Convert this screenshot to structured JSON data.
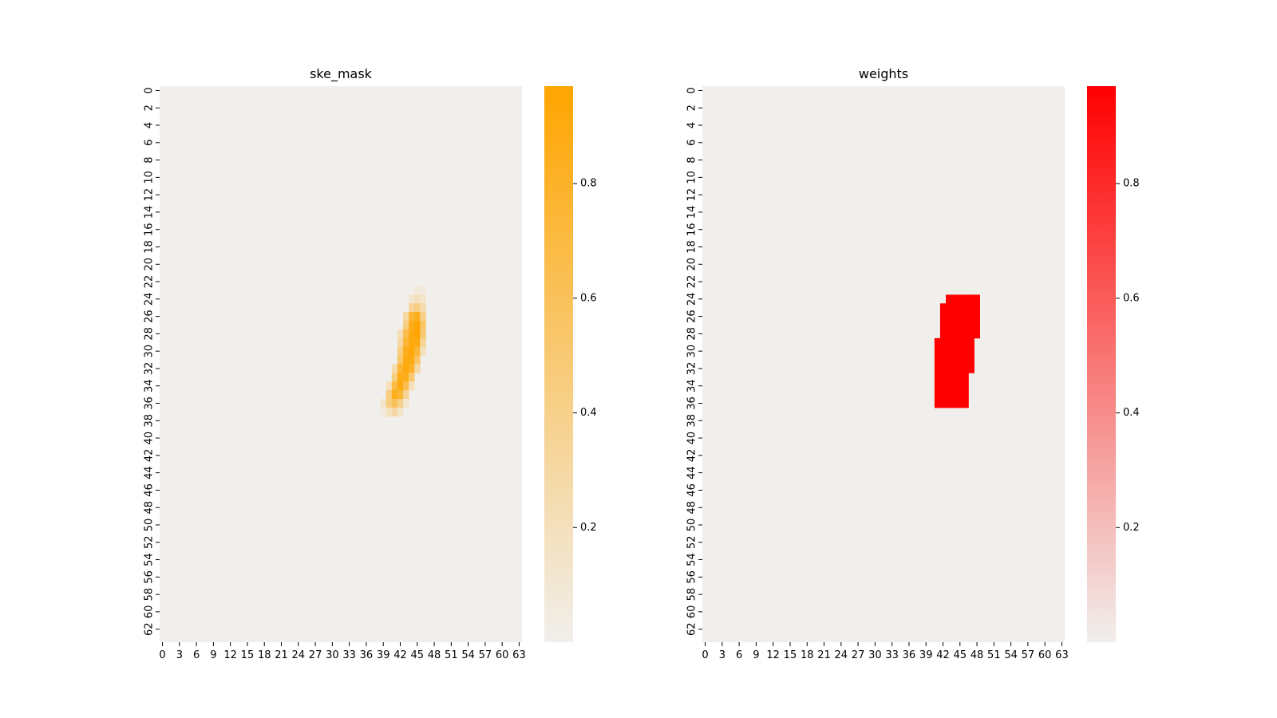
{
  "chart_data": [
    {
      "type": "heatmap",
      "title": "ske_mask",
      "xlabel": "",
      "ylabel": "",
      "grid": false,
      "rows": 64,
      "cols": 64,
      "x_ticks": [
        0,
        3,
        6,
        9,
        12,
        15,
        18,
        21,
        24,
        27,
        30,
        33,
        36,
        39,
        42,
        45,
        48,
        51,
        54,
        57,
        60,
        63
      ],
      "y_ticks": [
        0,
        2,
        4,
        6,
        8,
        10,
        12,
        14,
        16,
        18,
        20,
        22,
        24,
        26,
        28,
        30,
        32,
        34,
        36,
        38,
        40,
        42,
        44,
        46,
        48,
        50,
        52,
        54,
        56,
        58,
        60,
        62
      ],
      "colormap": {
        "low": "#f1efec",
        "high": "#ffa500",
        "range": [
          0,
          0.97
        ]
      },
      "colorbar_ticks": [
        0.2,
        0.4,
        0.6,
        0.8
      ],
      "cells": [
        {
          "r": 23,
          "c": 45,
          "v": 0.08
        },
        {
          "r": 23,
          "c": 46,
          "v": 0.06
        },
        {
          "r": 24,
          "c": 44,
          "v": 0.12
        },
        {
          "r": 24,
          "c": 45,
          "v": 0.2
        },
        {
          "r": 24,
          "c": 46,
          "v": 0.14
        },
        {
          "r": 25,
          "c": 44,
          "v": 0.35
        },
        {
          "r": 25,
          "c": 45,
          "v": 0.45
        },
        {
          "r": 25,
          "c": 46,
          "v": 0.25
        },
        {
          "r": 26,
          "c": 43,
          "v": 0.3
        },
        {
          "r": 26,
          "c": 44,
          "v": 0.75
        },
        {
          "r": 26,
          "c": 45,
          "v": 0.85
        },
        {
          "r": 26,
          "c": 46,
          "v": 0.4
        },
        {
          "r": 27,
          "c": 43,
          "v": 0.45
        },
        {
          "r": 27,
          "c": 44,
          "v": 0.85
        },
        {
          "r": 27,
          "c": 45,
          "v": 0.95
        },
        {
          "r": 27,
          "c": 46,
          "v": 0.55
        },
        {
          "r": 28,
          "c": 42,
          "v": 0.2
        },
        {
          "r": 28,
          "c": 43,
          "v": 0.65
        },
        {
          "r": 28,
          "c": 44,
          "v": 0.9
        },
        {
          "r": 28,
          "c": 45,
          "v": 0.97
        },
        {
          "r": 28,
          "c": 46,
          "v": 0.5
        },
        {
          "r": 29,
          "c": 42,
          "v": 0.3
        },
        {
          "r": 29,
          "c": 43,
          "v": 0.75
        },
        {
          "r": 29,
          "c": 44,
          "v": 0.92
        },
        {
          "r": 29,
          "c": 45,
          "v": 0.9
        },
        {
          "r": 29,
          "c": 46,
          "v": 0.35
        },
        {
          "r": 30,
          "c": 42,
          "v": 0.45
        },
        {
          "r": 30,
          "c": 43,
          "v": 0.85
        },
        {
          "r": 30,
          "c": 44,
          "v": 0.95
        },
        {
          "r": 30,
          "c": 45,
          "v": 0.75
        },
        {
          "r": 30,
          "c": 46,
          "v": 0.2
        },
        {
          "r": 31,
          "c": 42,
          "v": 0.55
        },
        {
          "r": 31,
          "c": 43,
          "v": 0.9
        },
        {
          "r": 31,
          "c": 44,
          "v": 0.9
        },
        {
          "r": 31,
          "c": 45,
          "v": 0.55
        },
        {
          "r": 32,
          "c": 41,
          "v": 0.25
        },
        {
          "r": 32,
          "c": 42,
          "v": 0.75
        },
        {
          "r": 32,
          "c": 43,
          "v": 0.92
        },
        {
          "r": 32,
          "c": 44,
          "v": 0.8
        },
        {
          "r": 32,
          "c": 45,
          "v": 0.3
        },
        {
          "r": 33,
          "c": 41,
          "v": 0.45
        },
        {
          "r": 33,
          "c": 42,
          "v": 0.88
        },
        {
          "r": 33,
          "c": 43,
          "v": 0.85
        },
        {
          "r": 33,
          "c": 44,
          "v": 0.5
        },
        {
          "r": 34,
          "c": 40,
          "v": 0.2
        },
        {
          "r": 34,
          "c": 41,
          "v": 0.7
        },
        {
          "r": 34,
          "c": 42,
          "v": 0.9
        },
        {
          "r": 34,
          "c": 43,
          "v": 0.65
        },
        {
          "r": 34,
          "c": 44,
          "v": 0.2
        },
        {
          "r": 35,
          "c": 40,
          "v": 0.45
        },
        {
          "r": 35,
          "c": 41,
          "v": 0.85
        },
        {
          "r": 35,
          "c": 42,
          "v": 0.75
        },
        {
          "r": 35,
          "c": 43,
          "v": 0.35
        },
        {
          "r": 36,
          "c": 39,
          "v": 0.15
        },
        {
          "r": 36,
          "c": 40,
          "v": 0.45
        },
        {
          "r": 36,
          "c": 41,
          "v": 0.6
        },
        {
          "r": 36,
          "c": 42,
          "v": 0.4
        },
        {
          "r": 36,
          "c": 43,
          "v": 0.12
        },
        {
          "r": 37,
          "c": 39,
          "v": 0.06
        },
        {
          "r": 37,
          "c": 40,
          "v": 0.18
        },
        {
          "r": 37,
          "c": 41,
          "v": 0.3
        },
        {
          "r": 37,
          "c": 42,
          "v": 0.15
        }
      ]
    },
    {
      "type": "heatmap",
      "title": "weights",
      "xlabel": "",
      "ylabel": "",
      "grid": false,
      "rows": 64,
      "cols": 64,
      "x_ticks": [
        0,
        3,
        6,
        9,
        12,
        15,
        18,
        21,
        24,
        27,
        30,
        33,
        36,
        39,
        42,
        45,
        48,
        51,
        54,
        57,
        60,
        63
      ],
      "y_ticks": [
        0,
        2,
        4,
        6,
        8,
        10,
        12,
        14,
        16,
        18,
        20,
        22,
        24,
        26,
        28,
        30,
        32,
        34,
        36,
        38,
        40,
        42,
        44,
        46,
        48,
        50,
        52,
        54,
        56,
        58,
        60,
        62
      ],
      "colormap": {
        "low": "#f1efec",
        "high": "#ff0000",
        "range": [
          0,
          0.97
        ]
      },
      "colorbar_ticks": [
        0.2,
        0.4,
        0.6,
        0.8
      ],
      "regions": [
        {
          "rows": [
            24,
            24
          ],
          "cols": [
            43,
            48
          ],
          "v": 0.97
        },
        {
          "rows": [
            25,
            28
          ],
          "cols": [
            42,
            48
          ],
          "v": 0.97
        },
        {
          "rows": [
            29,
            32
          ],
          "cols": [
            41,
            47
          ],
          "v": 0.97
        },
        {
          "rows": [
            33,
            36
          ],
          "cols": [
            41,
            46
          ],
          "v": 0.97
        }
      ]
    }
  ]
}
